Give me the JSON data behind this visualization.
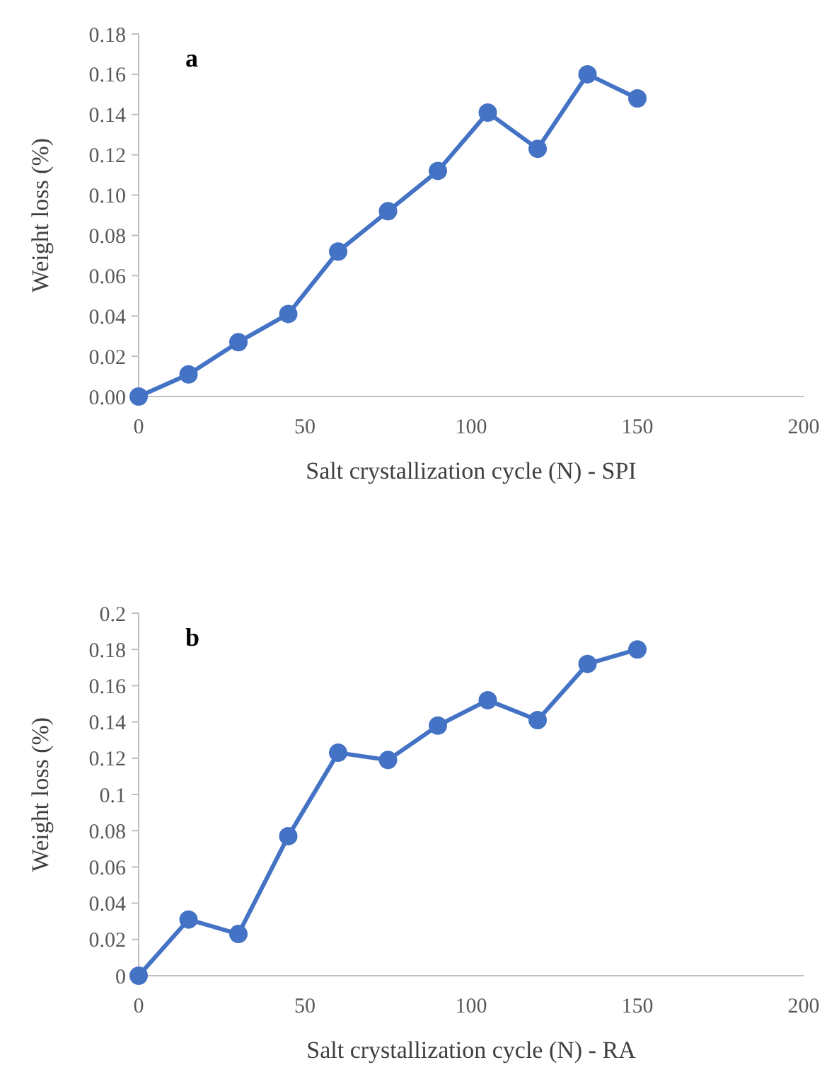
{
  "chart_data": [
    {
      "type": "line",
      "xlabel": "Salt crystallization cycle (N) - SPI",
      "ylabel": "Weight loss (%)",
      "annotations": [
        "a"
      ],
      "x": [
        0,
        15,
        30,
        45,
        60,
        75,
        90,
        105,
        120,
        135,
        150
      ],
      "series": [
        {
          "color": "#4472c4",
          "values": [
            0,
            0.011,
            0.027,
            0.041,
            0.072,
            0.092,
            0.112,
            0.141,
            0.123,
            0.16,
            0.148
          ]
        }
      ],
      "xlim": [
        0,
        200
      ],
      "xticks": [
        0,
        50,
        100,
        150,
        200
      ],
      "ylim": [
        0,
        0.18
      ],
      "yticks": [
        {
          "value": 0,
          "label": "0.00"
        },
        {
          "value": 0.02,
          "label": "0.02"
        },
        {
          "value": 0.04,
          "label": "0.04"
        },
        {
          "value": 0.06,
          "label": "0.06"
        },
        {
          "value": 0.08,
          "label": "0.08"
        },
        {
          "value": 0.1,
          "label": "0.10"
        },
        {
          "value": 0.12,
          "label": "0.12"
        },
        {
          "value": 0.14,
          "label": "0.14"
        },
        {
          "value": 0.16,
          "label": "0.16"
        },
        {
          "value": 0.18,
          "label": "0.18"
        }
      ],
      "grid": false,
      "marker": "circle"
    },
    {
      "type": "line",
      "xlabel": "Salt crystallization cycle (N) - RA",
      "ylabel": "Weight loss (%)",
      "annotations": [
        "b"
      ],
      "x": [
        0,
        15,
        30,
        45,
        60,
        75,
        90,
        105,
        120,
        135,
        150
      ],
      "series": [
        {
          "color": "#4472c4",
          "values": [
            0,
            0.031,
            0.023,
            0.077,
            0.123,
            0.119,
            0.138,
            0.152,
            0.141,
            0.172,
            0.18
          ]
        }
      ],
      "xlim": [
        0,
        200
      ],
      "xticks": [
        0,
        50,
        100,
        150,
        200
      ],
      "ylim": [
        0,
        0.2
      ],
      "yticks": [
        0,
        0.02,
        0.04,
        0.06,
        0.08,
        0.1,
        0.12,
        0.14,
        0.16,
        0.18,
        0.2
      ],
      "grid": false,
      "marker": "circle"
    }
  ]
}
